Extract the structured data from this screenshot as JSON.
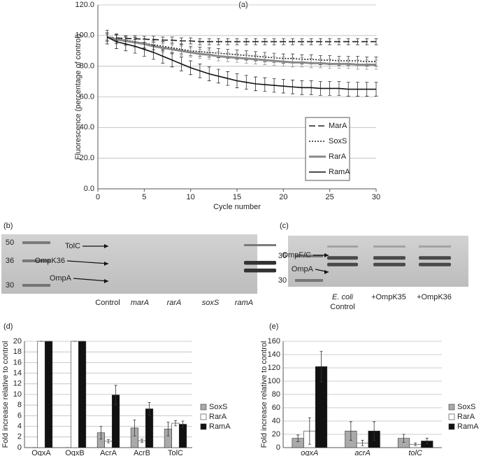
{
  "chart_data": [
    {
      "type": "line",
      "panel": "(a)",
      "x_label": "Cycle number",
      "y_label": "Fluorescence (percentage of control)",
      "x": [
        1,
        2,
        3,
        4,
        5,
        6,
        7,
        8,
        9,
        10,
        11,
        12,
        13,
        14,
        15,
        16,
        17,
        18,
        19,
        20,
        21,
        22,
        23,
        24,
        25,
        26,
        27,
        28,
        29,
        30
      ],
      "xlim": [
        0,
        30
      ],
      "xticks": [
        0,
        5,
        10,
        15,
        20,
        25,
        30
      ],
      "ylim": [
        0,
        120
      ],
      "yticks": [
        {
          "value": 0,
          "label": "0.0"
        },
        {
          "value": 20,
          "label": "20.0"
        },
        {
          "value": 40,
          "label": "40.0"
        },
        {
          "value": 60,
          "label": "60.0"
        },
        {
          "value": 80,
          "label": "80.0"
        },
        {
          "value": 100,
          "label": "100.0"
        },
        {
          "value": 120,
          "label": "120.0"
        }
      ],
      "grid": true,
      "legend": "lower right",
      "series": [
        {
          "name": "MarA",
          "color": "#222222",
          "dash": "9 4",
          "error": 2,
          "values": [
            99,
            98.5,
            98,
            98,
            97.5,
            97.5,
            97,
            97,
            96.5,
            96.5,
            96,
            96,
            96,
            96,
            96,
            96,
            96,
            96,
            96,
            96,
            96,
            96,
            96,
            96,
            96,
            96,
            96,
            96,
            96,
            96
          ]
        },
        {
          "name": "SoxS",
          "color": "#222222",
          "dash": "2 2",
          "error": 3,
          "values": [
            99,
            98,
            97,
            96,
            95,
            94,
            93,
            92,
            91,
            90,
            89.5,
            89,
            88.5,
            88,
            87.5,
            87,
            86.5,
            86,
            85.5,
            85,
            85,
            84.5,
            84.5,
            84,
            84,
            83.5,
            83.5,
            83.5,
            83,
            83
          ]
        },
        {
          "name": "RarA",
          "color": "#888888",
          "dash": "none",
          "error": 3,
          "values": [
            99,
            97.5,
            96.5,
            95.5,
            94.5,
            93,
            92,
            91,
            90,
            89,
            88,
            87.5,
            86.5,
            86,
            85.5,
            85,
            84.5,
            84,
            83.5,
            83,
            82.5,
            82.5,
            82,
            82,
            81.5,
            81.5,
            81.5,
            81,
            81,
            81
          ]
        },
        {
          "name": "RamA",
          "color": "#111111",
          "dash": "none",
          "error": 4.5,
          "values": [
            99,
            96,
            94.5,
            93,
            91,
            89,
            86.5,
            84,
            81.5,
            79,
            77,
            75,
            73.5,
            72,
            70.5,
            69.5,
            68.5,
            68,
            67.5,
            67,
            66.5,
            66,
            66,
            65.5,
            65.5,
            65.5,
            65,
            65,
            65,
            65
          ]
        }
      ]
    },
    {
      "type": "bar",
      "panel": "(d)",
      "y_label": "Fold increase relative to control",
      "categories": [
        "OqxA",
        "OqxB",
        "AcrA",
        "AcrB",
        "TolC"
      ],
      "ylim": [
        0,
        20
      ],
      "yticks": [
        0,
        2,
        4,
        6,
        8,
        10,
        12,
        14,
        16,
        18,
        20
      ],
      "grid": true,
      "legend": "right",
      "series": [
        {
          "name": "SoxS",
          "color": "#aaaaaa",
          "values": [
            0,
            0,
            2.8,
            3.7,
            3.5
          ],
          "errors": [
            0,
            0,
            1.2,
            1.5,
            1.3
          ]
        },
        {
          "name": "RarA",
          "color": "#ffffff",
          "values": [
            20,
            20,
            1.2,
            1.3,
            4.6
          ],
          "errors": [
            0,
            0,
            0.3,
            0.3,
            0.5
          ]
        },
        {
          "name": "RamA",
          "color": "#111111",
          "values": [
            20,
            20,
            9.9,
            7.3,
            4.4
          ],
          "errors": [
            0,
            0,
            1.8,
            1.2,
            0.6
          ]
        }
      ]
    },
    {
      "type": "bar",
      "panel": "(e)",
      "y_label": "Fold increase relative to control",
      "italic_categories": true,
      "categories": [
        "oqxA",
        "acrA",
        "tolC"
      ],
      "ylim": [
        0,
        160
      ],
      "yticks": [
        0,
        20,
        40,
        60,
        80,
        100,
        120,
        140,
        160
      ],
      "grid": true,
      "legend": "right",
      "series": [
        {
          "name": "SoxS",
          "color": "#aaaaaa",
          "values": [
            14,
            25,
            14
          ],
          "errors": [
            5,
            14,
            6
          ]
        },
        {
          "name": "RarA",
          "color": "#ffffff",
          "values": [
            25,
            7,
            5
          ],
          "errors": [
            20,
            4,
            2
          ]
        },
        {
          "name": "RamA",
          "color": "#111111",
          "values": [
            122,
            25,
            10
          ],
          "errors": [
            23,
            14,
            4
          ]
        }
      ]
    }
  ],
  "gels": [
    {
      "panel": "(b)",
      "markers": [
        "50",
        "36",
        "30"
      ],
      "bands": [
        "TolC",
        "OmpK36",
        "OmpA"
      ],
      "lanes": [
        [
          "Control"
        ],
        [
          "marA"
        ],
        [
          "rarA"
        ],
        [
          "soxS"
        ],
        [
          "ramA"
        ]
      ]
    },
    {
      "panel": "(c)",
      "markers": [
        "36",
        "30"
      ],
      "bands": [
        "OmpF/C",
        "OmpA"
      ],
      "lanes": [
        [
          "E. coli",
          "Control"
        ],
        [
          "+OmpK35"
        ],
        [
          "+OmpK36"
        ]
      ]
    }
  ]
}
